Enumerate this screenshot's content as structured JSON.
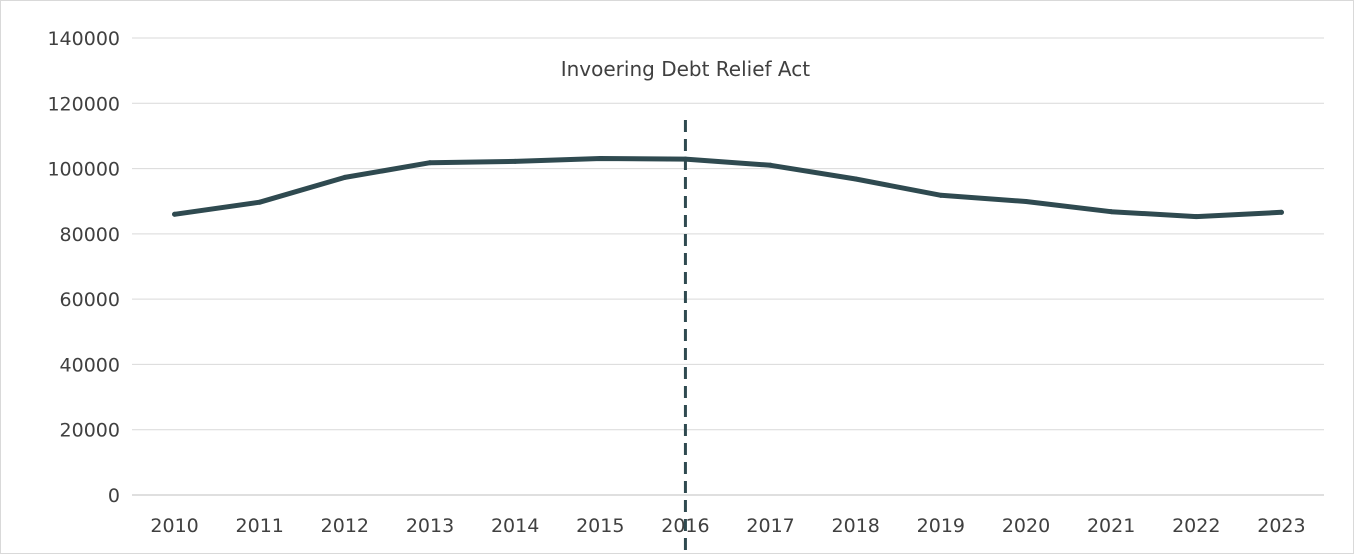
{
  "chart_data": {
    "type": "line",
    "title": "",
    "xlabel": "",
    "ylabel": "",
    "categories": [
      "2010",
      "2011",
      "2012",
      "2013",
      "2014",
      "2015",
      "2016",
      "2017",
      "2018",
      "2019",
      "2020",
      "2021",
      "2022",
      "2023"
    ],
    "series": [
      {
        "values": [
          86000,
          89700,
          97300,
          101800,
          102200,
          103100,
          102900,
          101000,
          96800,
          91800,
          89900,
          86800,
          85300,
          86600
        ],
        "color": "#2f4a50"
      }
    ],
    "ylim": [
      0,
      140000
    ],
    "yticks": [
      0,
      20000,
      40000,
      60000,
      80000,
      100000,
      120000,
      140000
    ],
    "ytick_labels": [
      "0",
      "20000",
      "40000",
      "60000",
      "80000",
      "100000",
      "120000",
      "140000"
    ],
    "grid": true,
    "legend": "none",
    "annotation": {
      "text": "Invoering Debt Relief Act",
      "at_category": "2016",
      "line_style": "dashed",
      "color": "#2f4a50"
    }
  }
}
